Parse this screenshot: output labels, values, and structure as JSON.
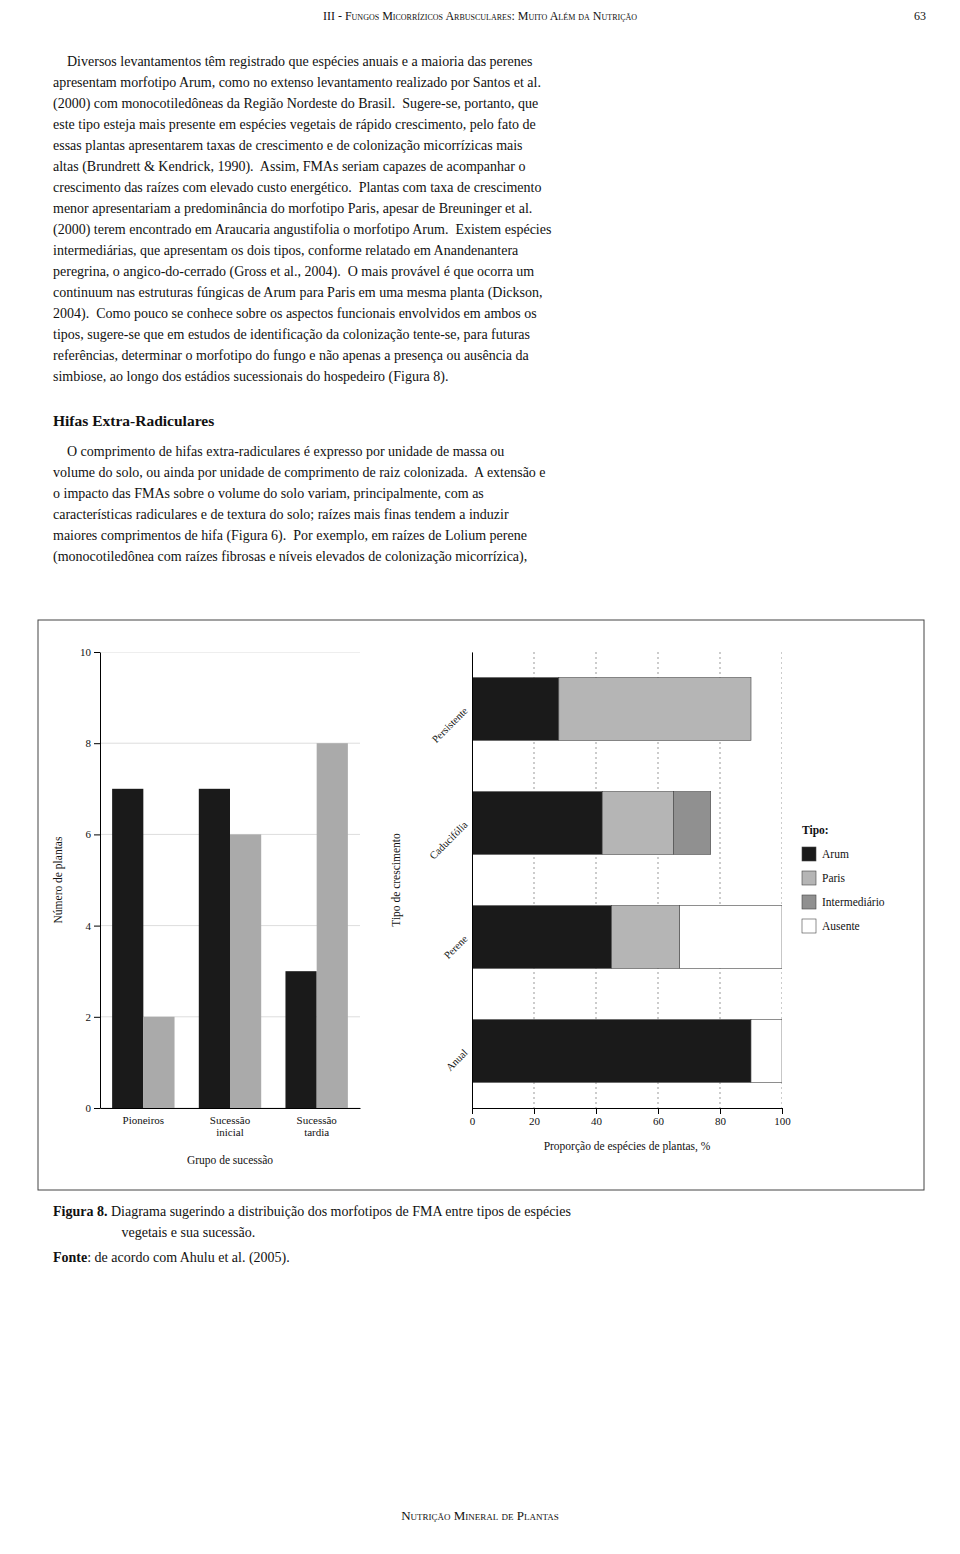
{
  "page_header": "III - Fungos Micorrízicos Arbusculares: Muito Além da Nutrição",
  "page_number": "63",
  "body_text_1": [
    "    Diversos levantamentos têm registrado que espécies anuais e a maioria das perenes",
    "apresentam morfotipo Arum, como no extenso levantamento realizado por Santos et al.",
    "(2000) com monocotiledôneas da Região Nordeste do Brasil.  Sugere-se, portanto, que",
    "este tipo esteja mais presente em espécies vegetais de rápido crescimento, pelo fato de",
    "essas plantas apresentarem taxas de crescimento e de colonização micorrízicas mais",
    "altas (Brundrett & Kendrick, 1990).  Assim, FMAs seriam capazes de acompanhar o",
    "crescimento das raízes com elevado custo energético.  Plantas com taxa de crescimento",
    "menor apresentariam a predominância do morfotipo Paris, apesar de Breuninger et al.",
    "(2000) terem encontrado em Araucaria angustifolia o morfotipo Arum.  Existem espécies",
    "intermediárias, que apresentam os dois tipos, conforme relatado em Anandenantera",
    "peregrina, o angico-do-cerrado (Gross et al., 2004).  O mais provável é que ocorra um",
    "continuum nas estruturas fúngicas de Arum para Paris em uma mesma planta (Dickson,",
    "2004).  Como pouco se conhece sobre os aspectos funcionais envolvidos em ambos os",
    "tipos, sugere-se que em estudos de identificação da colonização tente-se, para futuras",
    "referências, determinar o morfotipo do fungo e não apenas a presença ou ausência da",
    "simbiose, ao longo dos estádios sucessionais do hospedeiro (Figura 8)."
  ],
  "section_title": "Hifas Extra-Radiculares",
  "body_text_2": [
    "    O comprimento de hifas extra-radiculares é expresso por unidade de massa ou",
    "volume do solo, ou ainda por unidade de comprimento de raiz colonizada.  A extensão e",
    "o impacto das FMAs sobre o volume do solo variam, principalmente, com as",
    "características radiculares e de textura do solo; raízes mais finas tendem a induzir",
    "maiores comprimentos de hifa (Figura 6).  Por exemplo, em raízes de Lolium perene",
    "(monocotiledônea com raízes fibrosas e níveis elevados de colonização micorrízica),"
  ],
  "caption_label": "Figura 8.",
  "caption_text": " Diagrama sugerindo a distribuição dos morfotipos de FMA entre tipos de espécies",
  "caption_line2": "    vegetais e sua sucessão.",
  "source_label": "Fonte",
  "source_text": ": de acordo com Ahulu et al. (2005).",
  "footer": "Nutrição Mineral de Plantas",
  "chart_data": [
    {
      "type": "bar",
      "categories": [
        "Pioneiros",
        "Sucessão\ninicial",
        "Sucessão\ntardia"
      ],
      "series": [
        {
          "color": "#1a1a1a",
          "values": [
            7,
            7,
            3
          ]
        },
        {
          "color": "#aaaaaa",
          "values": [
            2,
            6,
            8
          ]
        }
      ],
      "xlabel": "Grupo de sucessão",
      "ylabel": "Número de plantas",
      "ylim": [
        0,
        10
      ],
      "yticks": [
        0,
        2,
        4,
        6,
        8,
        10
      ],
      "grid": true
    },
    {
      "type": "bar",
      "orientation": "horizontal",
      "stacked": true,
      "categories": [
        "Anual",
        "Perene",
        "Caducifólia",
        "Persistente"
      ],
      "series": [
        {
          "name": "Arum",
          "color": "#1a1a1a",
          "values": [
            90,
            45,
            42,
            28
          ]
        },
        {
          "name": "Paris",
          "color": "#b5b5b5",
          "values": [
            0,
            22,
            23,
            62
          ]
        },
        {
          "name": "Intermediário",
          "color": "#909090",
          "values": [
            0,
            0,
            12,
            0
          ]
        },
        {
          "name": "Ausente",
          "color": "#ffffff",
          "values": [
            10,
            33,
            0,
            0
          ]
        }
      ],
      "xlabel": "Proporção de espécies de plantas, %",
      "ylabel": "Tipo de crescimento",
      "xlim": [
        0,
        100
      ],
      "xticks": [
        0,
        20,
        40,
        60,
        80,
        100
      ],
      "grid": true,
      "legend": "right",
      "legend_title": "Tipo:"
    }
  ]
}
